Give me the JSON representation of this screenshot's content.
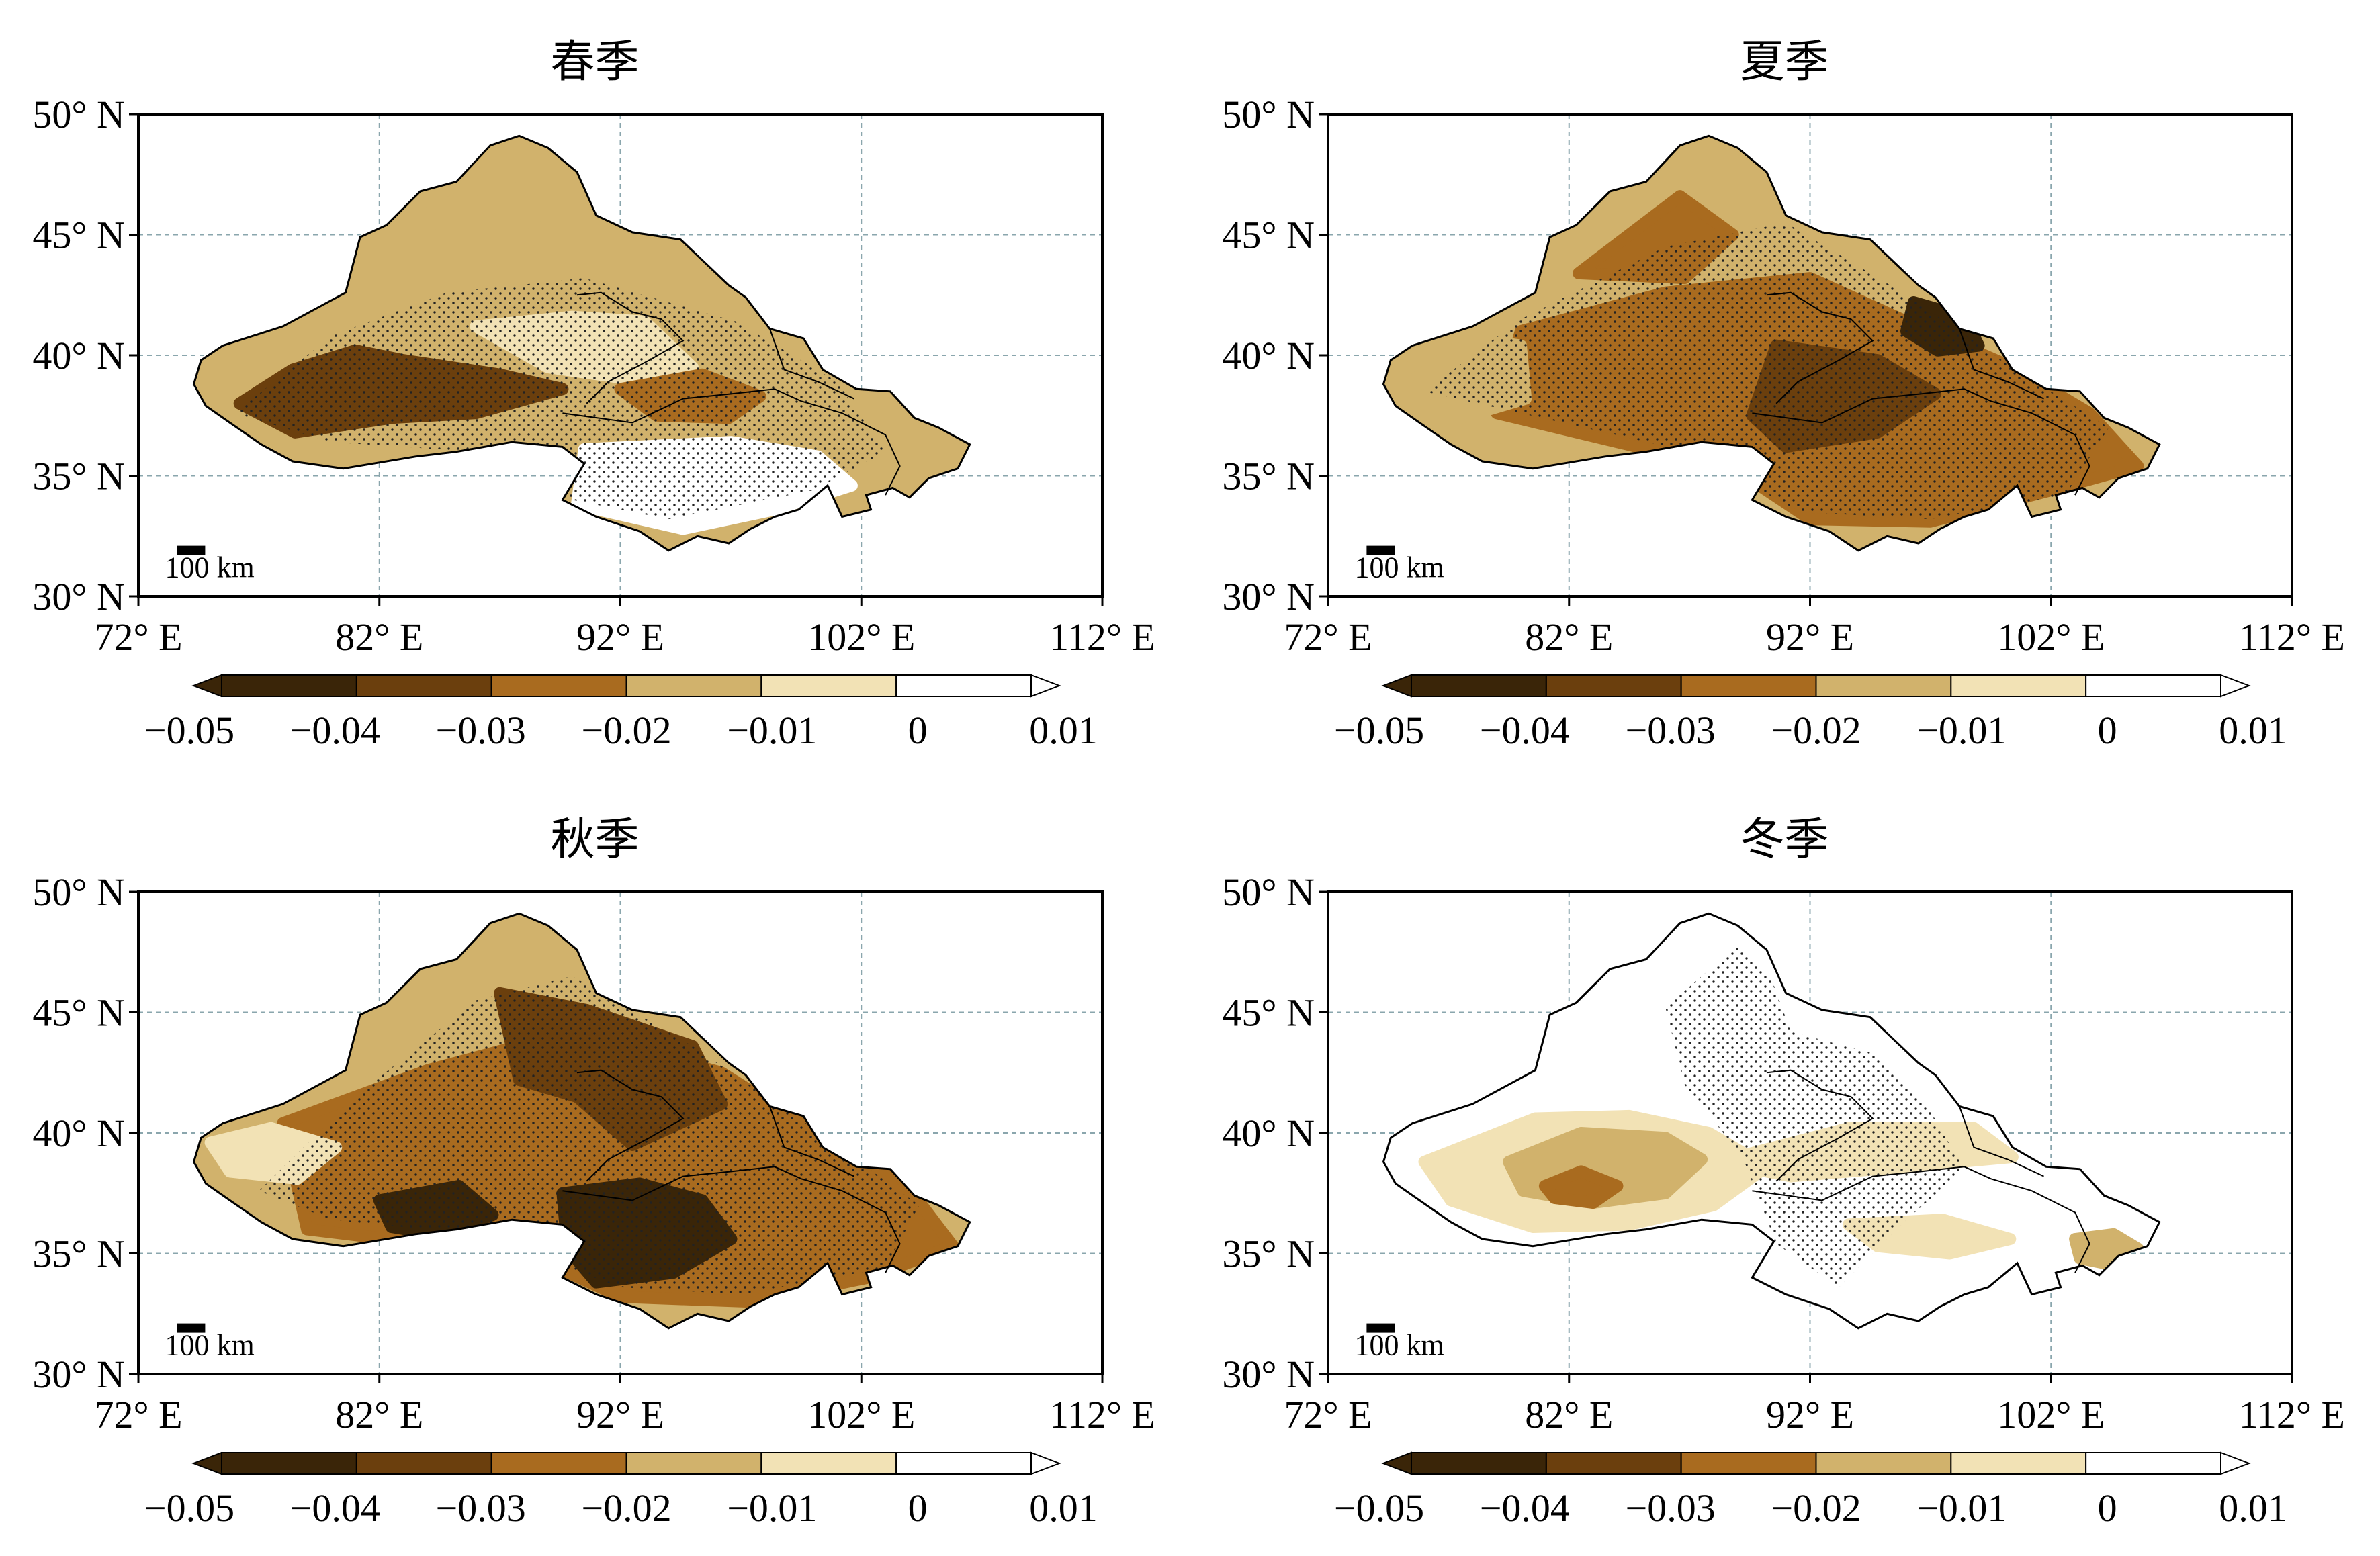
{
  "map": {
    "extent": {
      "lon": [
        72,
        112
      ],
      "lat": [
        30,
        50
      ]
    },
    "lat_ticks": [
      {
        "value": 50,
        "label": "50° N"
      },
      {
        "value": 45,
        "label": "45° N"
      },
      {
        "value": 40,
        "label": "40° N"
      },
      {
        "value": 35,
        "label": "35° N"
      },
      {
        "value": 30,
        "label": "30° N"
      }
    ],
    "lon_ticks": [
      {
        "value": 72,
        "label": "72° E"
      },
      {
        "value": 82,
        "label": "82° E"
      },
      {
        "value": 92,
        "label": "92° E"
      },
      {
        "value": 102,
        "label": "102° E"
      },
      {
        "value": 112,
        "label": "112° E"
      }
    ],
    "gridlines": true,
    "scale_bar_label": "100 km",
    "colorbar": {
      "labels": [
        "−0.05",
        "−0.04",
        "−0.03",
        "−0.02",
        "−0.01",
        "0",
        "0.01"
      ],
      "colors": [
        "#3a2508",
        "#6b3f0d",
        "#a96b1f",
        "#d1b26c",
        "#f2e2b5",
        "#ffffff"
      ]
    },
    "colors": {
      "outline": "#000000",
      "grid": "#8aa6ad",
      "stipple": "#222222"
    }
  },
  "panels": [
    {
      "title": "春季"
    },
    {
      "title": "夏季"
    },
    {
      "title": "秋季"
    },
    {
      "title": "冬季"
    }
  ]
}
